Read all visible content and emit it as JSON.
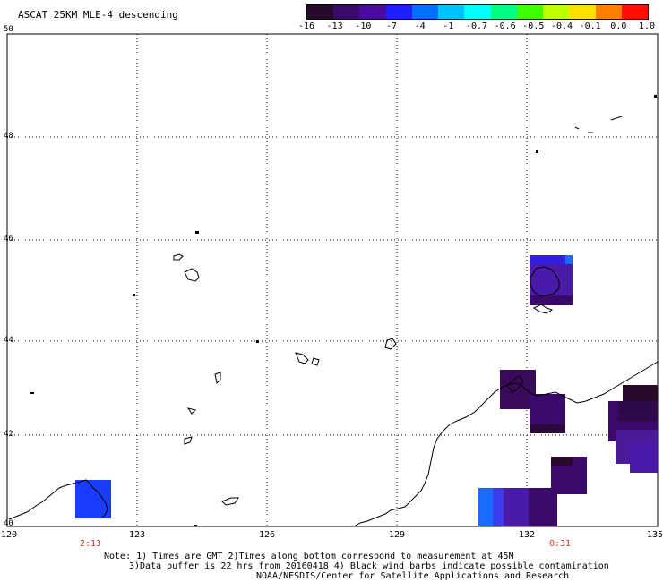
{
  "title": "ASCAT 25KM MLE-4 descending",
  "colorbar": {
    "labels": [
      "-16",
      "-13",
      "-10",
      "-7",
      "-4",
      "-1",
      "-0.7",
      "-0.6",
      "-0.5",
      "-0.4",
      "-0.1",
      "0.0",
      "1.0"
    ],
    "colors": [
      "#2a0a2a",
      "#3a0a6a",
      "#4b0aa0",
      "#2020ff",
      "#0070ff",
      "#00c0ff",
      "#00ffff",
      "#00ff80",
      "#40ff00",
      "#c0ff00",
      "#ffe000",
      "#ff8000",
      "#ff1000"
    ]
  },
  "axes": {
    "lat_labels": [
      "50",
      "48",
      "46",
      "44",
      "42",
      "40"
    ],
    "lon_labels": [
      "120",
      "123",
      "126",
      "129",
      "132",
      "135"
    ],
    "time_labels": [
      "2:13",
      "0:31"
    ]
  },
  "notes": {
    "line1": "Note: 1) Times are GMT 2)Times along bottom correspond to measurement at 45N",
    "line2": "3)Data buffer is 22 hrs from 20160418 4) Black wind barbs indicate possible contamination",
    "line3": "NOAA/NESDIS/Center for Satellite Applications and Research"
  }
}
